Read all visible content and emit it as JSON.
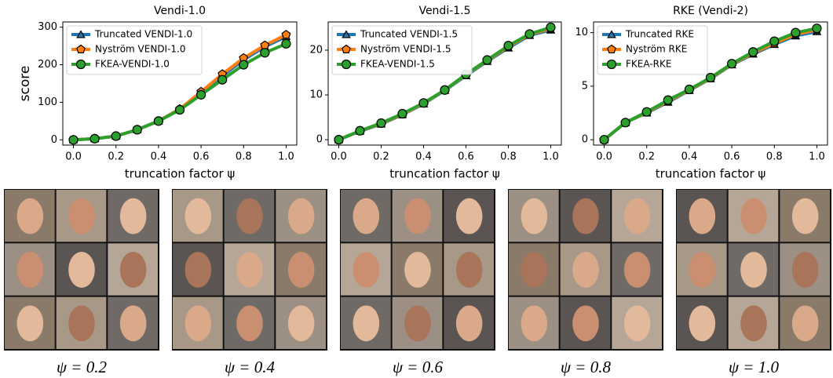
{
  "chart_data": [
    {
      "type": "line",
      "title": "Vendi-1.0",
      "y_label": "score",
      "x_label": "truncation factor ψ",
      "x": [
        0,
        0.1,
        0.2,
        0.3,
        0.4,
        0.5,
        0.6,
        0.7,
        0.8,
        0.9,
        1.0
      ],
      "xlim": [
        -0.05,
        1.05
      ],
      "xticks": [
        {
          "value": 0,
          "label": "0.0"
        },
        0.2,
        0.4,
        0.6,
        0.8,
        {
          "value": 1,
          "label": "1.0"
        }
      ],
      "ylim": [
        -14,
        314
      ],
      "yticks": [
        0,
        100,
        200,
        300
      ],
      "legend": "upper left",
      "series": [
        {
          "name": "Truncated VENDI-1.0",
          "color": "#1f77b4",
          "marker": "triangle",
          "values": [
            0,
            3,
            10,
            27,
            50,
            82,
            125,
            170,
            213,
            248,
            275
          ]
        },
        {
          "name": "Nyström VENDI-1.0",
          "color": "#ff7f0e",
          "marker": "pentagon",
          "values": [
            0,
            3,
            10,
            27,
            50,
            82,
            128,
            175,
            218,
            252,
            280
          ]
        },
        {
          "name": "FKEA-VENDI-1.0",
          "color": "#2ca02c",
          "marker": "circle",
          "values": [
            0,
            3,
            10,
            27,
            50,
            80,
            120,
            160,
            200,
            232,
            256
          ]
        }
      ]
    },
    {
      "type": "line",
      "title": "Vendi-1.5",
      "x_label": "truncation factor ψ",
      "x": [
        0,
        0.1,
        0.2,
        0.3,
        0.4,
        0.5,
        0.6,
        0.7,
        0.8,
        0.9,
        1.0
      ],
      "xlim": [
        -0.05,
        1.05
      ],
      "xticks": [
        {
          "value": 0,
          "label": "0.0"
        },
        0.2,
        0.4,
        0.6,
        0.8,
        {
          "value": 1,
          "label": "1.0"
        }
      ],
      "ylim": [
        -1.2,
        26.3
      ],
      "yticks": [
        0,
        10,
        20
      ],
      "legend": "upper left",
      "series": [
        {
          "name": "Truncated VENDI-1.5",
          "color": "#1f77b4",
          "marker": "triangle",
          "values": [
            0,
            1.9,
            3.5,
            5.6,
            8,
            11,
            14.3,
            17.5,
            20.5,
            23.3,
            24.5
          ]
        },
        {
          "name": "Nyström VENDI-1.5",
          "color": "#ff7f0e",
          "marker": "pentagon",
          "values": [
            0,
            1.95,
            3.6,
            5.7,
            8.1,
            11.1,
            14.5,
            17.7,
            20.8,
            23.5,
            24.8
          ]
        },
        {
          "name": "FKEA-VENDI-1.5",
          "color": "#2ca02c",
          "marker": "circle",
          "values": [
            0,
            2,
            3.7,
            5.8,
            8.2,
            11.1,
            14.6,
            17.8,
            21,
            23.6,
            25.1
          ]
        }
      ]
    },
    {
      "type": "line",
      "title": "RKE (Vendi-2)",
      "x_label": "truncation factor ψ",
      "x": [
        0,
        0.1,
        0.2,
        0.3,
        0.4,
        0.5,
        0.6,
        0.7,
        0.8,
        0.9,
        1.0
      ],
      "xlim": [
        -0.05,
        1.05
      ],
      "xticks": [
        {
          "value": 0,
          "label": "0.0"
        },
        0.2,
        0.4,
        0.6,
        0.8,
        {
          "value": 1,
          "label": "1.0"
        }
      ],
      "ylim": [
        -0.5,
        11
      ],
      "yticks": [
        0,
        5,
        10
      ],
      "legend": "upper left",
      "series": [
        {
          "name": "Truncated RKE",
          "color": "#1f77b4",
          "marker": "triangle",
          "values": [
            0,
            1.6,
            2.5,
            3.5,
            4.6,
            5.7,
            7,
            8,
            8.9,
            9.7,
            10.1
          ]
        },
        {
          "name": "Nyström RKE",
          "color": "#ff7f0e",
          "marker": "pentagon",
          "values": [
            0,
            1.6,
            2.55,
            3.6,
            4.65,
            5.75,
            7.05,
            8.1,
            9,
            9.85,
            10.25
          ]
        },
        {
          "name": "FKEA-RKE",
          "color": "#2ca02c",
          "marker": "circle",
          "values": [
            0,
            1.6,
            2.6,
            3.7,
            4.7,
            5.8,
            7.1,
            8.2,
            9.2,
            10,
            10.4
          ]
        }
      ]
    }
  ],
  "image_captions": [
    "ψ = 0.2",
    "ψ = 0.4",
    "ψ = 0.6",
    "ψ = 0.8",
    "ψ = 1.0"
  ]
}
